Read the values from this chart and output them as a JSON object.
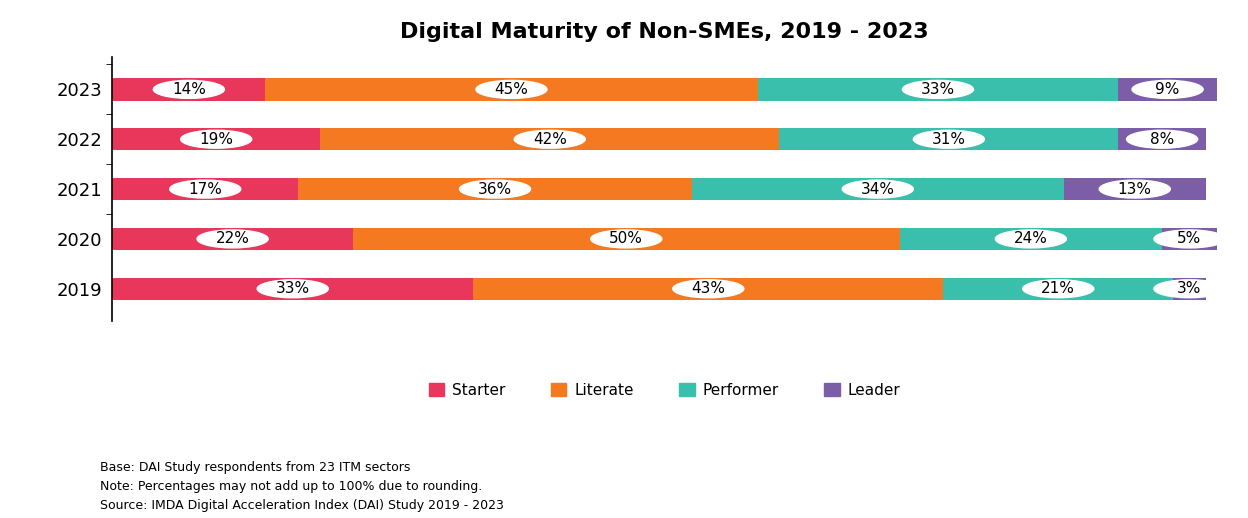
{
  "title": "Digital Maturity of Non-SMEs, 2019 - 2023",
  "years": [
    "2023",
    "2022",
    "2021",
    "2020",
    "2019"
  ],
  "categories": [
    "Starter",
    "Literate",
    "Performer",
    "Leader"
  ],
  "colors": [
    "#E8375A",
    "#F47920",
    "#3BBFAD",
    "#7B5EA7"
  ],
  "values": {
    "2023": [
      14,
      45,
      33,
      9
    ],
    "2022": [
      19,
      42,
      31,
      8
    ],
    "2021": [
      17,
      36,
      34,
      13
    ],
    "2020": [
      22,
      50,
      24,
      5
    ],
    "2019": [
      33,
      43,
      21,
      3
    ]
  },
  "footnotes": [
    "Base: DAI Study respondents from 23 ITM sectors",
    "Note: Percentages may not add up to 100% due to rounding.",
    "Source: IMDA Digital Acceleration Index (DAI) Study 2019 - 2023"
  ],
  "title_fontsize": 16,
  "label_fontsize": 11,
  "legend_fontsize": 11,
  "footnote_fontsize": 9,
  "bar_height": 0.45,
  "background_color": "#FFFFFF",
  "label_circle_color": "#FFFFFF",
  "label_circle_alpha": 1.0
}
